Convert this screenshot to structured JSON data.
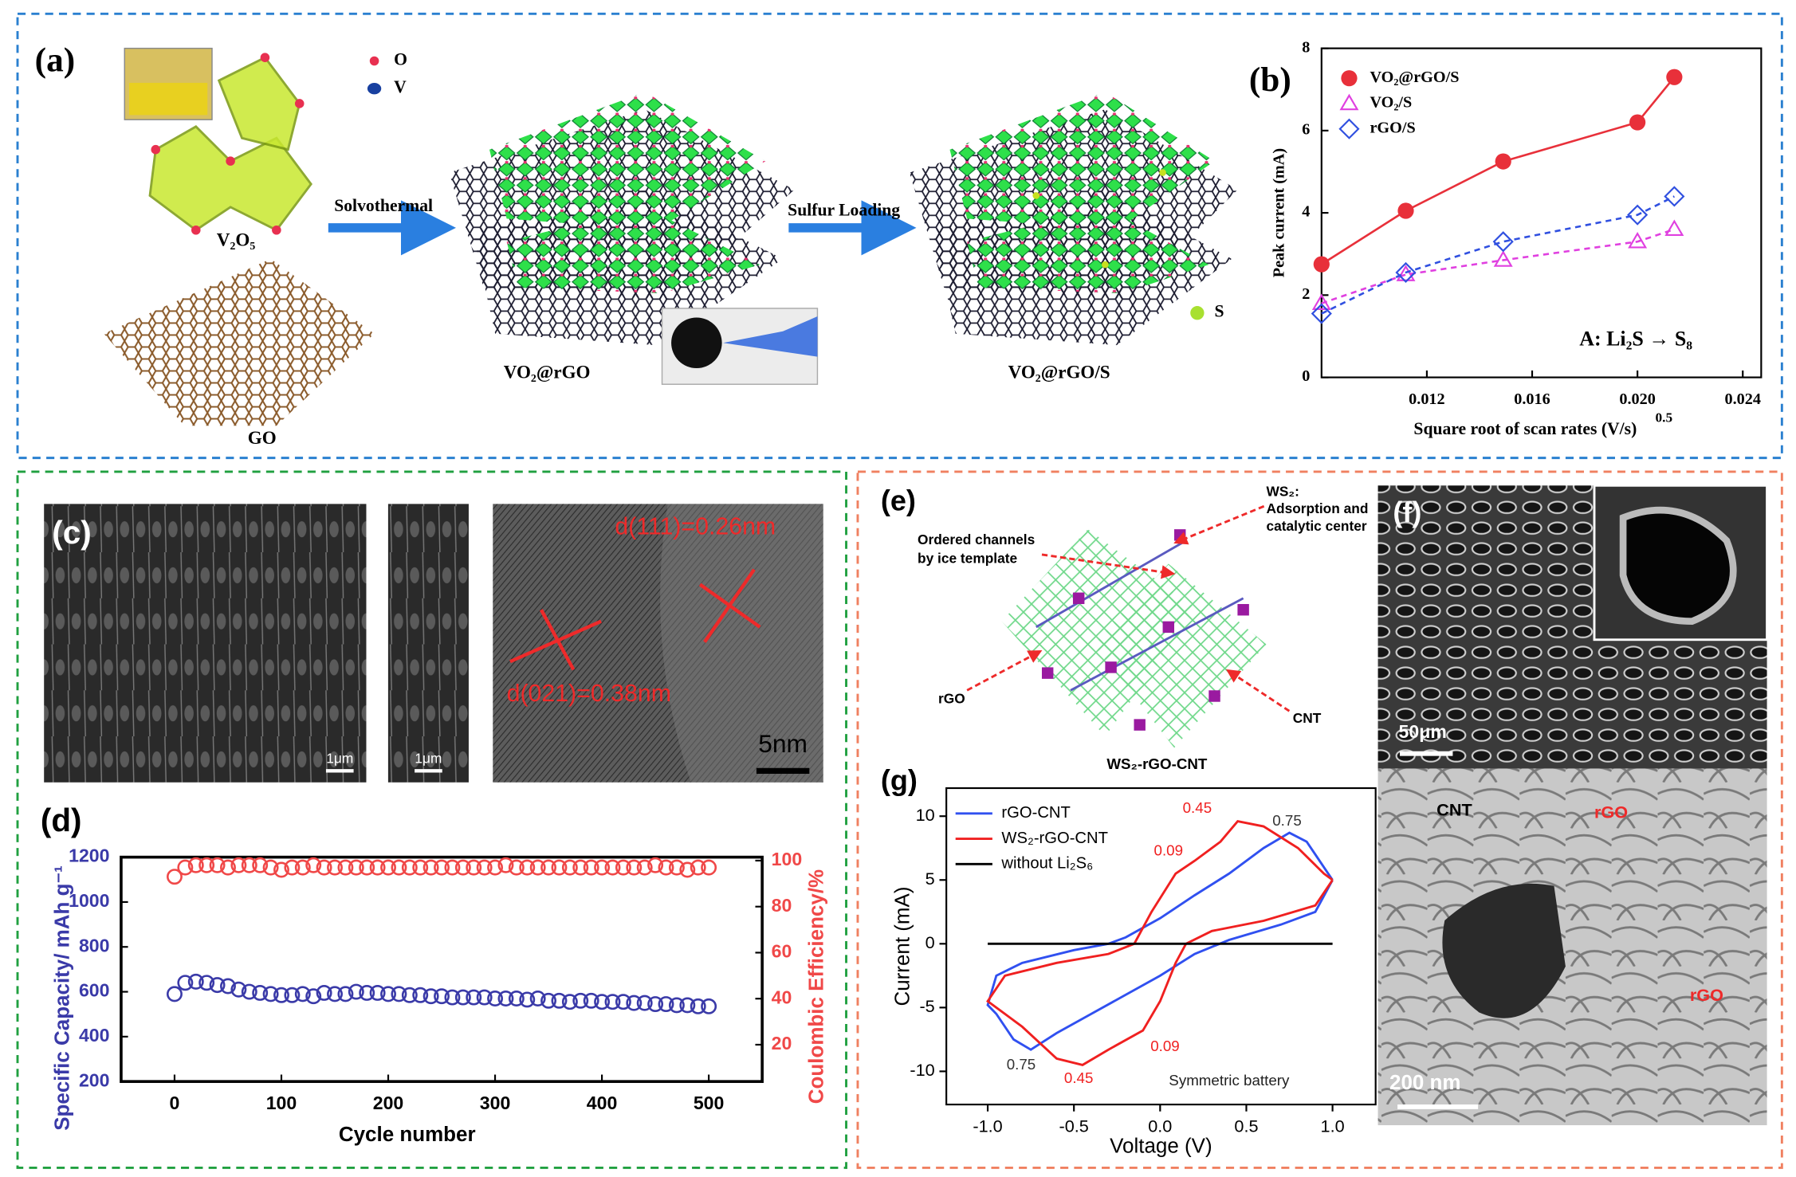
{
  "panel_a": {
    "label": "(a)",
    "legend_o": "O",
    "legend_v": "V",
    "legend_s": "S",
    "v2o5": "V₂O₅",
    "go": "GO",
    "step1": "Solvothermal",
    "product1": "VO₂@rGO",
    "step2": "Sulfur Loading",
    "product2": "VO₂@rGO/S"
  },
  "panel_c": {
    "label": "(c)",
    "scale1": "1μm",
    "scale2": "1μm",
    "scale3": "5nm",
    "d111": "d(111)=0.26nm",
    "d021": "d(021)=0.38nm"
  },
  "panel_e": {
    "label": "(e)",
    "ws2": "WS₂:",
    "ws2_desc": [
      "Adsorption and",
      "catalytic center"
    ],
    "channels": [
      "Ordered channels",
      "by ice template"
    ],
    "rgo": "rGO",
    "cnt": "CNT",
    "caption": "WS₂-rGO-CNT"
  },
  "panel_f": {
    "label": "(f)",
    "scale_top": "50μm",
    "cnt": "CNT",
    "rgo_1": "rGO",
    "rgo_2": "rGO",
    "scale_bottom": "200 nm"
  },
  "chart_data": [
    {
      "type": "scatter",
      "label": "(b)",
      "xlabel": "Square root of scan rates (V/s)",
      "xlabel_sup": "0.5",
      "ylabel": "Peak current (mA)",
      "annotation": "A: Li₂S → S₈",
      "x": [
        0.008,
        0.0112,
        0.0149,
        0.02,
        0.0214
      ],
      "series": [
        {
          "name": "VO₂@rGO/S",
          "color": "#e8303a",
          "marker": "circle",
          "dash": false,
          "values": [
            2.75,
            4.05,
            5.25,
            6.2,
            7.3
          ]
        },
        {
          "name": "VO₂/S",
          "color": "#e040e0",
          "marker": "triangle",
          "dash": true,
          "values": [
            1.8,
            2.5,
            2.85,
            3.3,
            3.6
          ]
        },
        {
          "name": "rGO/S",
          "color": "#3050e0",
          "marker": "diamond",
          "dash": true,
          "values": [
            1.55,
            2.55,
            3.3,
            3.95,
            4.4
          ]
        }
      ],
      "xlim": [
        0.008,
        0.0247
      ],
      "ylim": [
        0,
        8
      ],
      "xticks": [
        0.012,
        0.016,
        {
          "value": 0.02,
          "label": "0.020"
        },
        0.024
      ],
      "yticks": [
        0,
        2,
        4,
        6,
        8
      ]
    },
    {
      "type": "scatter",
      "label": "(d)",
      "xlabel": "Cycle number",
      "ylabel": "Specific Capacity/ mAh g⁻¹",
      "y2label": "Coulombic Efficiency/%",
      "x": [
        0,
        10,
        20,
        30,
        40,
        50,
        60,
        70,
        80,
        90,
        100,
        110,
        120,
        130,
        140,
        150,
        160,
        170,
        180,
        190,
        200,
        210,
        220,
        230,
        240,
        250,
        260,
        270,
        280,
        290,
        300,
        310,
        320,
        330,
        340,
        350,
        360,
        370,
        380,
        390,
        400,
        410,
        420,
        430,
        440,
        450,
        460,
        470,
        480,
        490,
        500
      ],
      "series": [
        {
          "color": "#3a3aa8",
          "values": [
            590,
            640,
            645,
            640,
            630,
            625,
            610,
            600,
            595,
            590,
            585,
            585,
            590,
            580,
            595,
            590,
            590,
            600,
            595,
            595,
            590,
            590,
            585,
            585,
            580,
            580,
            575,
            575,
            575,
            575,
            570,
            570,
            570,
            565,
            570,
            560,
            560,
            555,
            560,
            560,
            555,
            555,
            555,
            550,
            550,
            545,
            545,
            540,
            540,
            535,
            535
          ]
        },
        {
          "color": "#f04848",
          "axis": "y2",
          "values": [
            93,
            97,
            98,
            98,
            98,
            97,
            98,
            98,
            98,
            97,
            96,
            97,
            97,
            98,
            97,
            97,
            97,
            97,
            97,
            97,
            97,
            97,
            97,
            97,
            97,
            97,
            97,
            97,
            97,
            97,
            97,
            98,
            97,
            97,
            97,
            97,
            97,
            97,
            97,
            97,
            97,
            97,
            97,
            97,
            97,
            98,
            97,
            97,
            96,
            97,
            97
          ]
        }
      ],
      "xlim": [
        -50,
        550
      ],
      "ylim": [
        200,
        1200
      ],
      "y2lim": [
        4,
        101.5
      ],
      "xticks": [
        0,
        100,
        200,
        300,
        400,
        500
      ],
      "yticks": [
        200,
        400,
        600,
        800,
        1000,
        1200
      ],
      "y2ticks": [
        20,
        40,
        60,
        80,
        100
      ]
    },
    {
      "type": "line",
      "label": "(g)",
      "xlabel": "Voltage (V)",
      "ylabel": "Current (mA)",
      "series": [
        {
          "name": "rGO-CNT",
          "color": "#3050f0",
          "x": [
            1.0,
            0.9,
            0.7,
            0.4,
            0.2,
            0,
            -0.2,
            -0.4,
            -0.6,
            -0.75,
            -0.85,
            -0.95,
            -1.0,
            -0.95,
            -0.8,
            -0.5,
            -0.3,
            -0.2,
            0,
            0.2,
            0.4,
            0.6,
            0.75,
            0.85,
            0.95,
            1.0
          ],
          "values": [
            5,
            2.5,
            1.5,
            0.3,
            -0.8,
            -2.5,
            -4,
            -5.5,
            -7,
            -8.3,
            -7.5,
            -5.5,
            -4.8,
            -2.5,
            -1.5,
            -0.5,
            0,
            0.5,
            2,
            3.8,
            5.5,
            7.5,
            8.7,
            8,
            6,
            5
          ]
        },
        {
          "name": "WS₂-rGO-CNT",
          "color": "#f02020",
          "x": [
            1.0,
            0.9,
            0.6,
            0.3,
            0.15,
            0.09,
            0,
            -0.1,
            -0.3,
            -0.45,
            -0.6,
            -0.8,
            -1.0,
            -0.9,
            -0.6,
            -0.3,
            -0.15,
            -0.05,
            0.09,
            0.2,
            0.35,
            0.45,
            0.6,
            0.8,
            0.95,
            1.0
          ],
          "values": [
            5,
            3,
            1.8,
            1,
            0,
            -1.5,
            -4.5,
            -6.8,
            -8.3,
            -9.5,
            -9,
            -6.5,
            -4.5,
            -2.5,
            -1.5,
            -0.8,
            0,
            2.5,
            5.5,
            6.5,
            8,
            9.6,
            9.2,
            7.5,
            5.5,
            5
          ]
        },
        {
          "name": "without Li₂S₆",
          "color": "#000000",
          "x": [
            -1.0,
            1.0
          ],
          "values": [
            0,
            0
          ]
        }
      ],
      "annotations": [
        {
          "text": "0.75",
          "color": "#333333"
        },
        {
          "text": "0.45",
          "color": "#f02020"
        },
        {
          "text": "0.09",
          "color": "#f02020"
        },
        {
          "text": "0.75",
          "color": "#333333"
        },
        {
          "text": "0.45",
          "color": "#f02020"
        },
        {
          "text": "0.09",
          "color": "#f02020"
        },
        {
          "text": "Symmetric battery",
          "color": "#222222"
        }
      ],
      "xlim": [
        -1.24,
        1.25
      ],
      "ylim": [
        -12.6,
        12.2
      ],
      "xticks": [
        {
          "value": -1,
          "label": "-1.0"
        },
        -0.5,
        {
          "value": 0,
          "label": "0.0"
        },
        0.5,
        {
          "value": 1,
          "label": "1.0"
        }
      ],
      "yticks": [
        -10,
        -5,
        0,
        5,
        10
      ]
    }
  ]
}
